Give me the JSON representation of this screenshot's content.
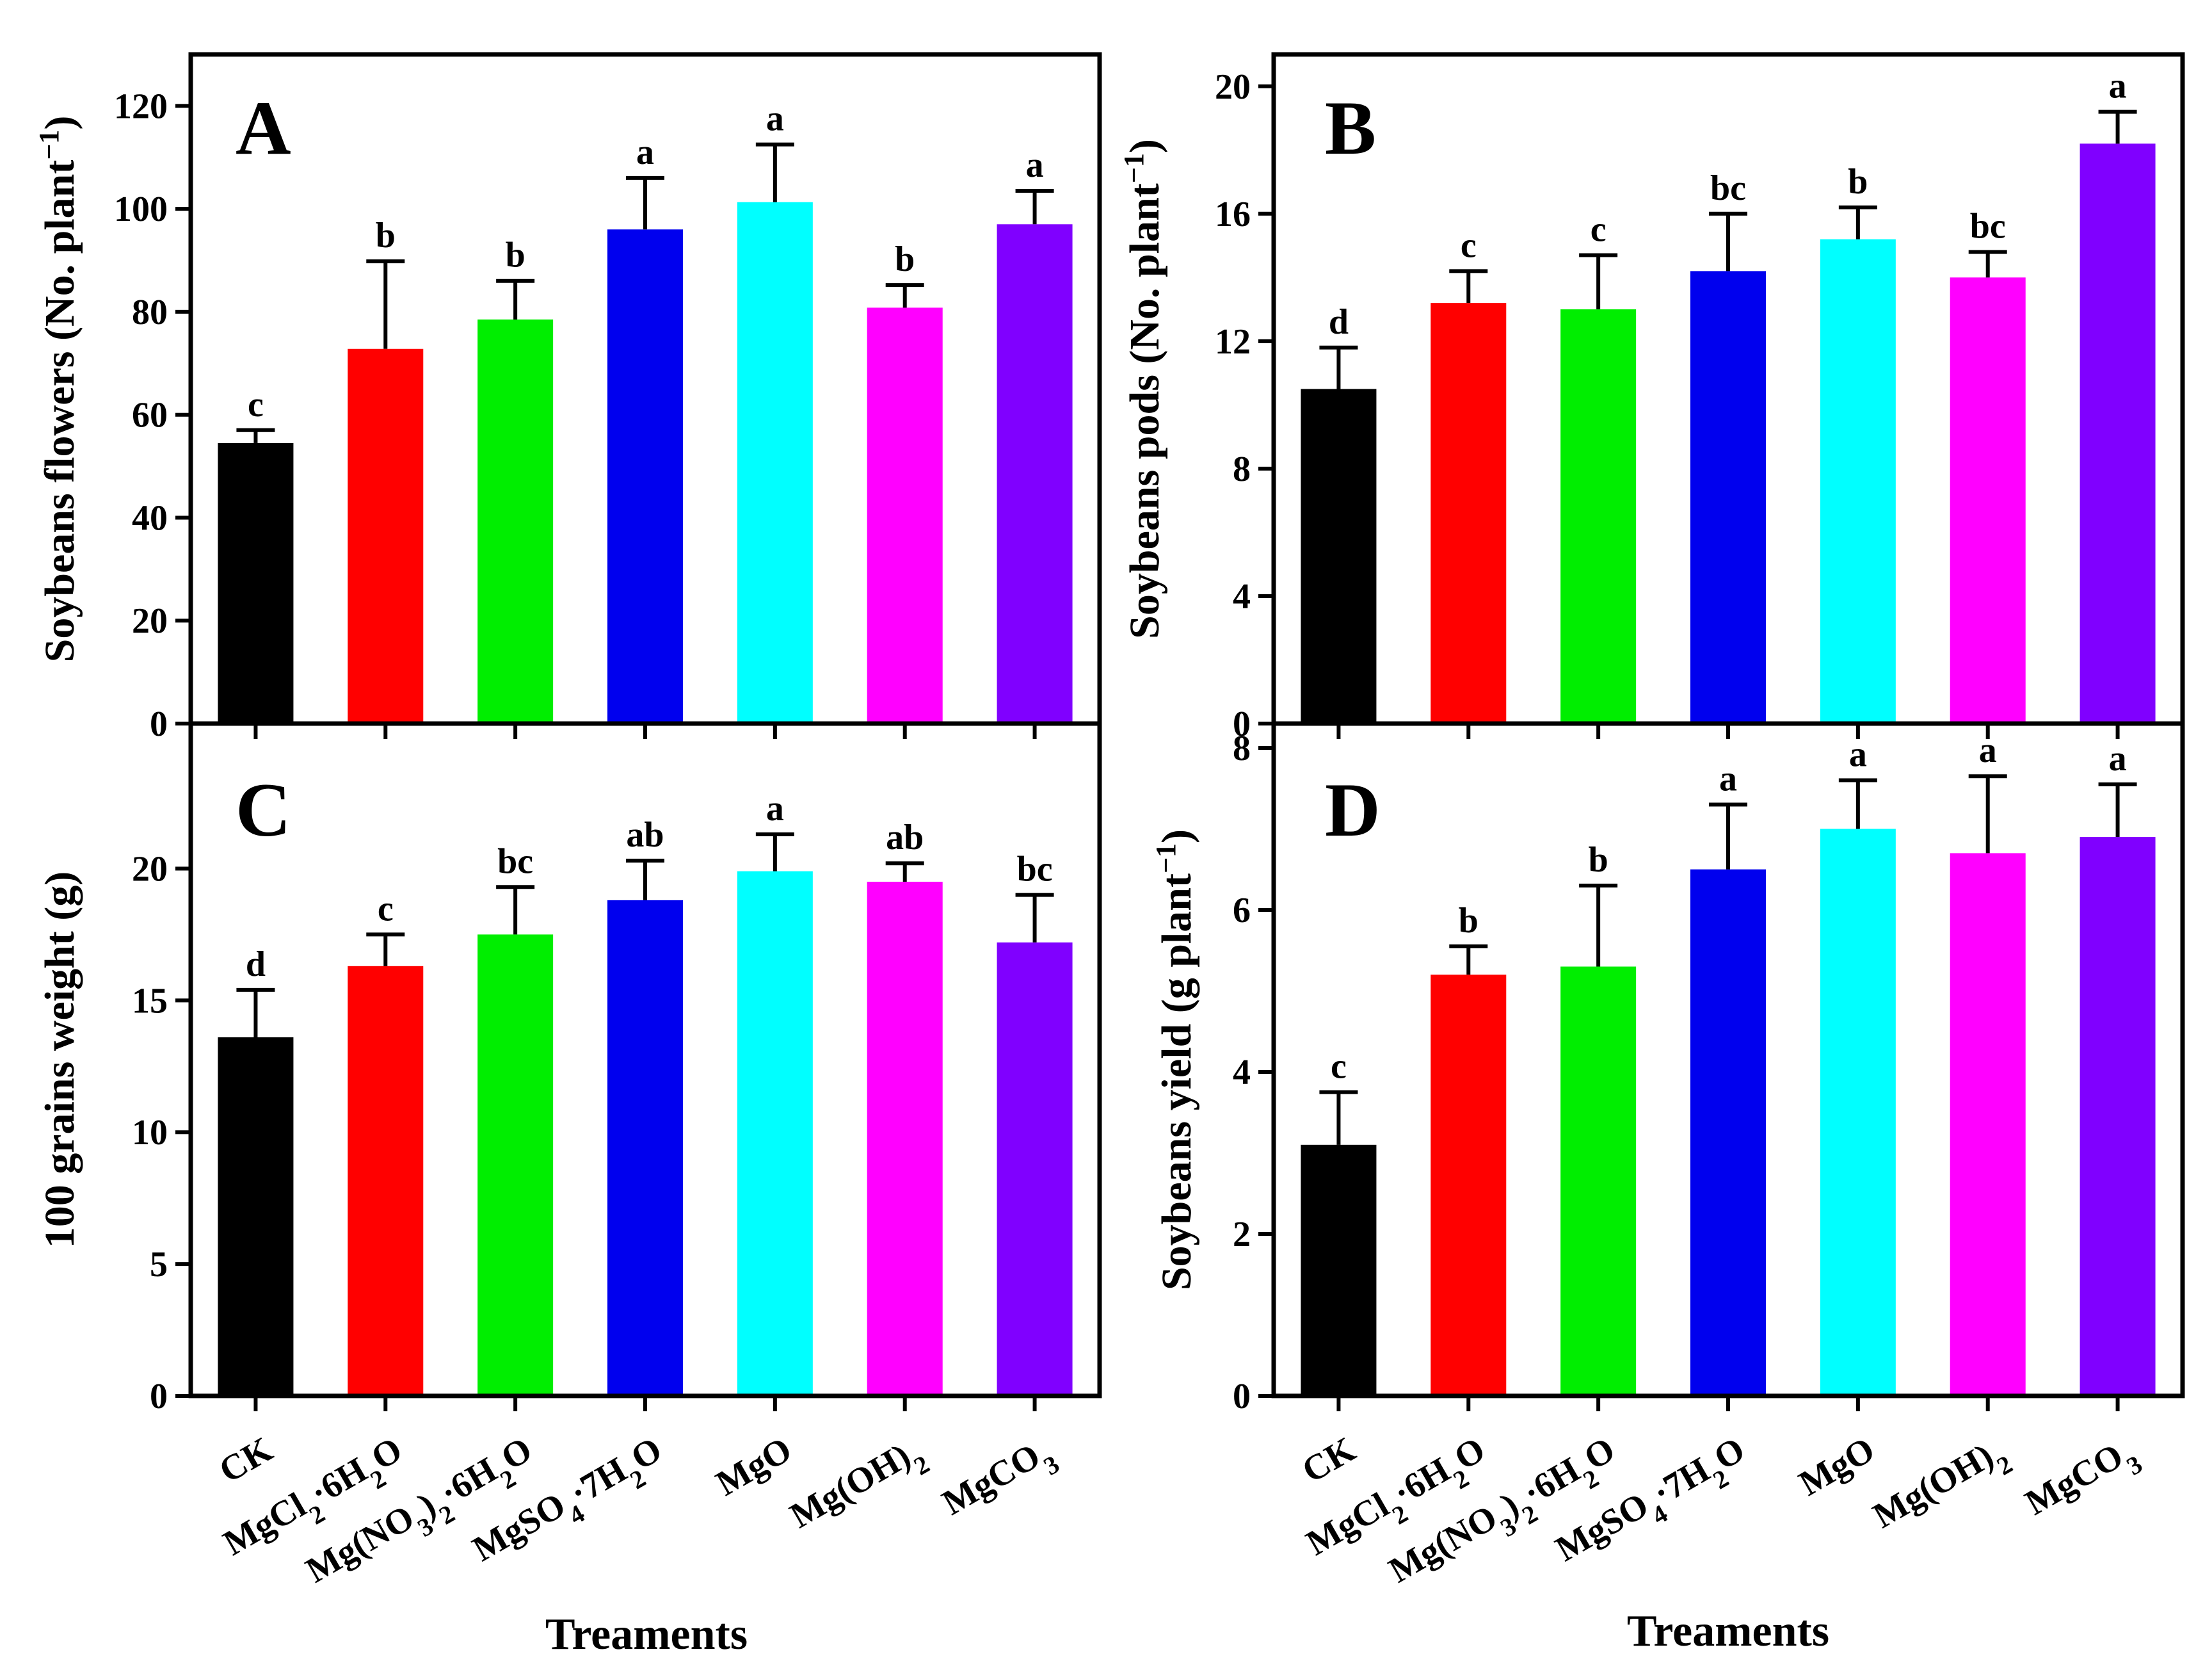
{
  "colors": [
    "#000000",
    "#ff0000",
    "#00ee00",
    "#0000ee",
    "#00ffff",
    "#ff00ff",
    "#8000ff"
  ],
  "chart_data": [
    {
      "type": "bar",
      "panel_label": "A",
      "ylabel": "Soybeans flowers (No. plant",
      "ylabel_sup": "−1",
      "ylabel_close": ")",
      "ylim": [
        0,
        130
      ],
      "yticks": [
        0,
        20,
        40,
        60,
        80,
        100,
        120
      ],
      "values": [
        54.5,
        72.8,
        78.5,
        96.0,
        101.3,
        80.8,
        97.0
      ],
      "errors": [
        2.5,
        17.0,
        7.5,
        10.0,
        11.2,
        4.4,
        6.5
      ],
      "letters": [
        "c",
        "b",
        "b",
        "a",
        "a",
        "b",
        "a"
      ]
    },
    {
      "type": "bar",
      "panel_label": "B",
      "ylabel": "Soybeans pods (No. plant",
      "ylabel_sup": "−1",
      "ylabel_close": ")",
      "ylim": [
        0,
        21
      ],
      "yticks": [
        0,
        4,
        8,
        12,
        16,
        20
      ],
      "values": [
        10.5,
        13.2,
        13.0,
        14.2,
        15.2,
        14.0,
        18.2
      ],
      "errors": [
        1.3,
        1.0,
        1.7,
        1.8,
        1.0,
        0.8,
        1.0
      ],
      "letters": [
        "d",
        "c",
        "c",
        "bc",
        "b",
        "bc",
        "a"
      ]
    },
    {
      "type": "bar",
      "panel_label": "C",
      "ylabel": "100 grains weight (g)",
      "ylabel_sup": "",
      "ylabel_close": "",
      "ylim": [
        0,
        25.5
      ],
      "yticks": [
        0,
        5,
        10,
        15,
        20
      ],
      "values": [
        13.6,
        16.3,
        17.5,
        18.8,
        19.9,
        19.5,
        17.2
      ],
      "errors": [
        1.8,
        1.2,
        1.8,
        1.5,
        1.4,
        0.7,
        1.8
      ],
      "letters": [
        "d",
        "c",
        "bc",
        "ab",
        "a",
        "ab",
        "bc"
      ]
    },
    {
      "type": "bar",
      "panel_label": "D",
      "ylabel": "Soybeans yield (g plant",
      "ylabel_sup": "−1",
      "ylabel_close": ")",
      "ylim": [
        0,
        8.3
      ],
      "yticks": [
        0,
        2,
        4,
        6,
        8
      ],
      "values": [
        3.1,
        5.2,
        5.3,
        6.5,
        7.0,
        6.7,
        6.9
      ],
      "errors": [
        0.65,
        0.35,
        1.0,
        0.8,
        0.6,
        0.95,
        0.65
      ],
      "letters": [
        "c",
        "b",
        "b",
        "a",
        "a",
        "a",
        "a"
      ]
    }
  ],
  "categories": [
    {
      "id": "ck",
      "main": "CK",
      "parts": [
        [
          "CK",
          ""
        ]
      ]
    },
    {
      "id": "mgcl2",
      "main": "MgCl2·6H2O",
      "parts": [
        [
          "MgCl",
          ""
        ],
        [
          "2",
          "sub"
        ],
        [
          "·6H",
          ""
        ],
        [
          "2",
          "sub"
        ],
        [
          "O",
          ""
        ]
      ]
    },
    {
      "id": "mgno3",
      "main": "Mg(NO3)2·6H2O",
      "parts": [
        [
          "Mg(NO",
          ""
        ],
        [
          "3",
          "sub"
        ],
        [
          ")",
          ""
        ],
        [
          "2",
          "sub"
        ],
        [
          "·6H",
          ""
        ],
        [
          "2",
          "sub"
        ],
        [
          "O",
          ""
        ]
      ]
    },
    {
      "id": "mgso4",
      "main": "MgSO4·7H2O",
      "parts": [
        [
          "MgSO",
          ""
        ],
        [
          "4",
          "sub"
        ],
        [
          "·7H",
          ""
        ],
        [
          "2",
          "sub"
        ],
        [
          "O",
          ""
        ]
      ]
    },
    {
      "id": "mgo",
      "main": "MgO",
      "parts": [
        [
          "MgO",
          ""
        ]
      ]
    },
    {
      "id": "mgoh2",
      "main": "Mg(OH)2",
      "parts": [
        [
          "Mg(OH)",
          ""
        ],
        [
          "2",
          "sub"
        ]
      ]
    },
    {
      "id": "mgco3",
      "main": "MgCO3",
      "parts": [
        [
          "MgCO",
          ""
        ],
        [
          "3",
          "sub"
        ]
      ]
    }
  ],
  "xlabel": "Treaments"
}
